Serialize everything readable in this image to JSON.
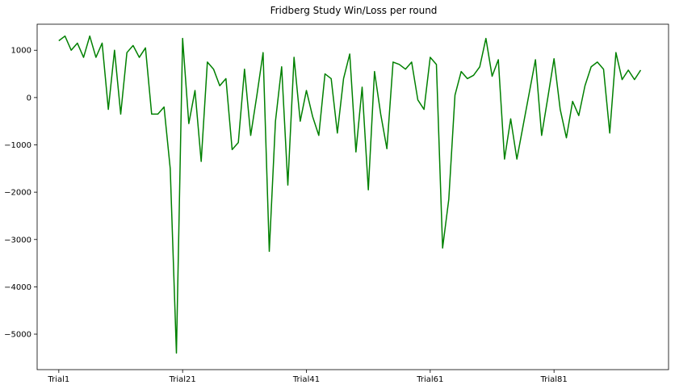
{
  "chart_data": {
    "type": "line",
    "title": "Fridberg Study Win/Loss per round",
    "xlabel": "",
    "ylabel": "",
    "x_tick_labels": [
      "Trial1",
      "Trial21",
      "Trial41",
      "Trial61",
      "Trial81"
    ],
    "x_tick_indices": [
      0,
      20,
      40,
      60,
      80
    ],
    "y_ticks": [
      1000,
      0,
      -1000,
      -2000,
      -3000,
      -4000,
      -5000
    ],
    "ylim": [
      -5750,
      1550
    ],
    "xlim": [
      -3.5,
      98.5
    ],
    "grid": false,
    "colors": {
      "line": "#008000",
      "axes": "#000000",
      "background": "#ffffff"
    },
    "series": [
      {
        "values": [
          1200,
          1300,
          1000,
          1150,
          850,
          1300,
          850,
          1150,
          -250,
          1000,
          -350,
          950,
          1100,
          850,
          1050,
          -350,
          -350,
          -200,
          -1500,
          -5400,
          1250,
          -550,
          150,
          -1350,
          750,
          600,
          250,
          400,
          -1100,
          -950,
          600,
          -800,
          50,
          950,
          -3250,
          -500,
          650,
          -1850,
          850,
          -500,
          150,
          -400,
          -800,
          500,
          400,
          -750,
          400,
          920,
          -1150,
          220,
          -1950,
          550,
          -350,
          -1080,
          750,
          700,
          600,
          750,
          -50,
          -250,
          850,
          700,
          -3180,
          -2150,
          50,
          550,
          400,
          470,
          650,
          1250,
          450,
          800,
          -1300,
          -450,
          -1300,
          -600,
          100,
          800,
          -800,
          0,
          820,
          -250,
          -850,
          -80,
          -380,
          250,
          650,
          750,
          600,
          -750,
          950,
          380,
          580,
          380,
          580
        ]
      }
    ]
  }
}
